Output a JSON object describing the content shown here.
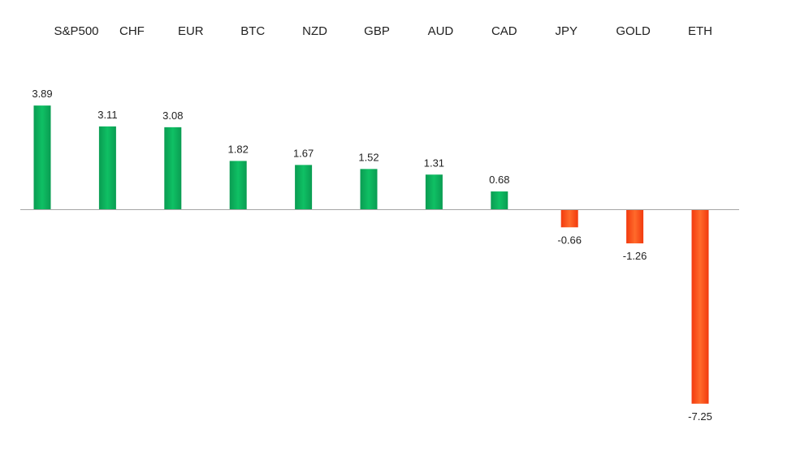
{
  "chart_data": {
    "type": "bar",
    "title": "",
    "xlabel": "",
    "ylabel": "",
    "categories": [
      "S&P500",
      "CHF",
      "EUR",
      "BTC",
      "NZD",
      "GBP",
      "AUD",
      "CAD",
      "JPY",
      "GOLD",
      "ETH"
    ],
    "values": [
      3.89,
      3.11,
      3.08,
      1.82,
      1.67,
      1.52,
      1.31,
      0.68,
      -0.66,
      -1.26,
      -7.25
    ],
    "value_labels": [
      "3.89",
      "3.11",
      "3.08",
      "1.82",
      "1.67",
      "1.52",
      "1.31",
      "0.68",
      "-0.66",
      "-1.26",
      "-7.25"
    ],
    "ylim": [
      -7.25,
      3.89
    ],
    "grid": false,
    "legend": "none",
    "colors": {
      "positive": "#00B050",
      "negative": "#FF3300",
      "axis": "#A6A6A6"
    }
  }
}
